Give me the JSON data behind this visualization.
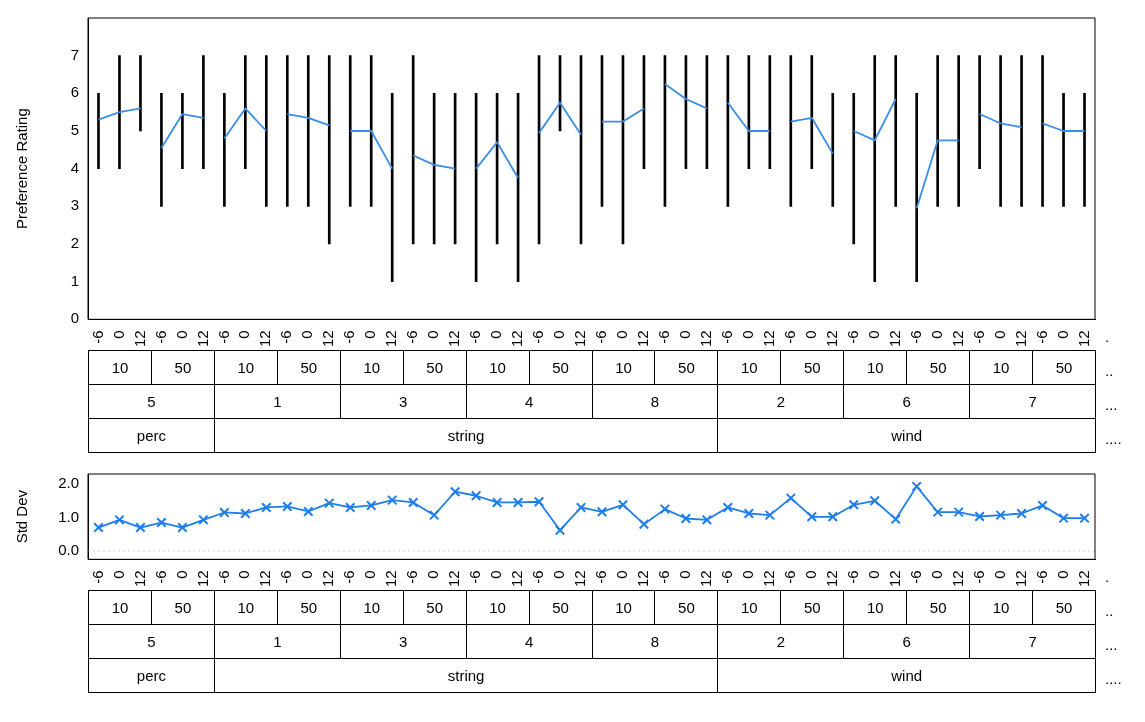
{
  "chart_data": [
    {
      "type": "bar",
      "ylabel": "Preference Rating",
      "categories": [
        "-6",
        "0",
        "12",
        "-6",
        "0",
        "12",
        "-6",
        "0",
        "12",
        "-6",
        "0",
        "12",
        "-6",
        "0",
        "12",
        "-6",
        "0",
        "12",
        "-6",
        "0",
        "12",
        "-6",
        "0",
        "12",
        "-6",
        "0",
        "12",
        "-6",
        "0",
        "12",
        "-6",
        "0",
        "12",
        "-6",
        "0",
        "12",
        "-6",
        "0",
        "12",
        "-6",
        "0",
        "12",
        "-6",
        "0",
        "12",
        "-6",
        "0",
        "12"
      ],
      "series": [
        {
          "type": "bar",
          "color": "#000000",
          "base": [
            4,
            4,
            5,
            3,
            4,
            4,
            3,
            4,
            3,
            3,
            3,
            2,
            3,
            3,
            1,
            2,
            2,
            2,
            1,
            2,
            1,
            2,
            5,
            2,
            3,
            2,
            4,
            3,
            4,
            4,
            3,
            4,
            4,
            3,
            4,
            3,
            2,
            1,
            3,
            1,
            3,
            3,
            4,
            3,
            3,
            3,
            3,
            3
          ],
          "values": [
            2,
            3,
            2,
            3,
            2,
            3,
            3,
            3,
            4,
            4,
            4,
            5,
            4,
            4,
            5,
            5,
            4,
            4,
            5,
            4,
            5,
            5,
            2,
            5,
            4,
            5,
            3,
            4,
            3,
            3,
            4,
            3,
            3,
            4,
            3,
            3,
            4,
            6,
            4,
            5,
            4,
            4,
            3,
            4,
            4,
            4,
            3,
            3
          ]
        },
        {
          "type": "line",
          "color": "#3b8ee8",
          "values": [
            5.3,
            5.5,
            5.6,
            4.55,
            5.45,
            5.35,
            4.8,
            5.6,
            5.0,
            5.45,
            5.35,
            5.15,
            5.0,
            5.0,
            4.0,
            4.35,
            4.1,
            4.0,
            4.0,
            4.7,
            3.75,
            4.95,
            5.75,
            4.9,
            5.25,
            5.25,
            5.6,
            6.25,
            5.85,
            5.6,
            5.75,
            5.0,
            5.0,
            5.25,
            5.35,
            4.4,
            5.0,
            4.75,
            5.85,
            2.95,
            4.75,
            4.75,
            5.45,
            5.2,
            5.1,
            5.2,
            5.0,
            5.0
          ]
        }
      ],
      "ylim": [
        0,
        8
      ],
      "yticks": [
        0,
        1,
        2,
        3,
        4,
        5,
        6,
        7,
        {
          "value": 8,
          "label": null
        }
      ],
      "grid": false,
      "legend": false,
      "annotations": [
        "10",
        "50",
        "10",
        "50",
        "10",
        "50",
        "10",
        "50",
        "10",
        "50",
        "10",
        "50",
        "10",
        "50",
        "10",
        "50",
        "5",
        "1",
        "3",
        "4",
        "8",
        "2",
        "6",
        "7",
        "perc",
        "string",
        "wind",
        ".",
        "..",
        "...",
        "...."
      ]
    },
    {
      "type": "line",
      "ylabel": "Std Dev",
      "categories": [
        "-6",
        "0",
        "12",
        "-6",
        "0",
        "12",
        "-6",
        "0",
        "12",
        "-6",
        "0",
        "12",
        "-6",
        "0",
        "12",
        "-6",
        "0",
        "12",
        "-6",
        "0",
        "12",
        "-6",
        "0",
        "12",
        "-6",
        "0",
        "12",
        "-6",
        "0",
        "12",
        "-6",
        "0",
        "12",
        "-6",
        "0",
        "12",
        "-6",
        "0",
        "12",
        "-6",
        "0",
        "12",
        "-6",
        "0",
        "12",
        "-6",
        "0",
        "12"
      ],
      "series": [
        {
          "color": "#1f7fe8",
          "values": [
            0.7,
            0.93,
            0.7,
            0.85,
            0.7,
            0.93,
            1.15,
            1.12,
            1.3,
            1.33,
            1.18,
            1.43,
            1.3,
            1.36,
            1.52,
            1.45,
            1.07,
            1.77,
            1.65,
            1.45,
            1.45,
            1.47,
            0.62,
            1.3,
            1.17,
            1.38,
            0.8,
            1.25,
            0.97,
            0.93,
            1.3,
            1.12,
            1.07,
            1.58,
            1.02,
            1.02,
            1.38,
            1.5,
            0.95,
            1.93,
            1.16,
            1.16,
            1.03,
            1.07,
            1.12,
            1.36,
            0.98,
            0.98
          ]
        }
      ],
      "ylim": [
        -0.25,
        2.3
      ],
      "yticks": [
        {
          "value": 0,
          "label": "0.0"
        },
        {
          "value": 1,
          "label": "1.0"
        },
        {
          "value": 2,
          "label": "2.0"
        }
      ],
      "marker": "cross",
      "grid": false,
      "legend": false,
      "ref_lines": [
        {
          "axis": "y",
          "value": 0,
          "color": "#cccccc",
          "line_style": "dotted"
        }
      ],
      "annotations": [
        "10",
        "50",
        "10",
        "50",
        "10",
        "50",
        "10",
        "50",
        "10",
        "50",
        "10",
        "50",
        "10",
        "50",
        "10",
        "50",
        "5",
        "1",
        "3",
        "4",
        "8",
        "2",
        "6",
        "7",
        "perc",
        "string",
        "wind",
        ".",
        "..",
        "...",
        "...."
      ]
    }
  ]
}
